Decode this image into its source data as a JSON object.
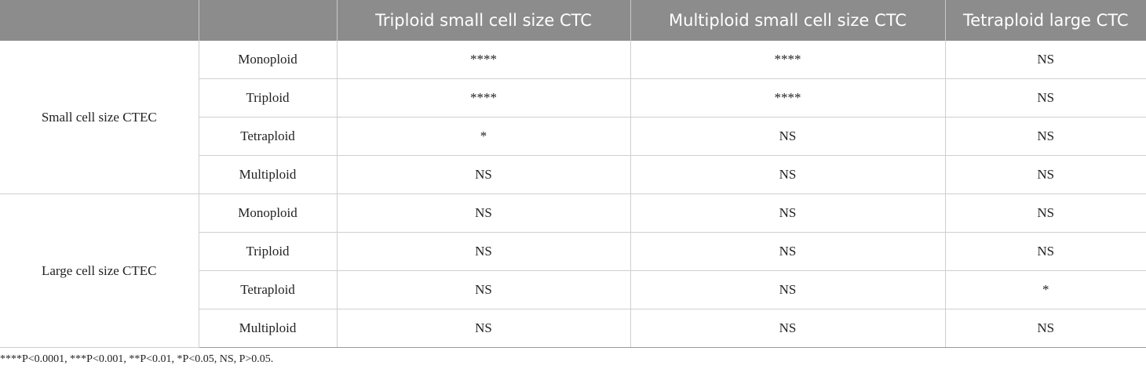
{
  "header": {
    "col_triploid": "Triploid small cell size CTC",
    "col_multiploid": "Multiploid small cell size CTC",
    "col_tetraploid": "Tetraploid large CTC"
  },
  "groups": [
    {
      "label": "Small cell size CTEC",
      "rows": [
        {
          "ploidy": "Monoploid",
          "triploid": "****",
          "multiploid": "****",
          "tetraploid": "NS"
        },
        {
          "ploidy": "Triploid",
          "triploid": "****",
          "multiploid": "****",
          "tetraploid": "NS"
        },
        {
          "ploidy": "Tetraploid",
          "triploid": "*",
          "multiploid": "NS",
          "tetraploid": "NS"
        },
        {
          "ploidy": "Multiploid",
          "triploid": "NS",
          "multiploid": "NS",
          "tetraploid": "NS"
        }
      ]
    },
    {
      "label": "Large cell size CTEC",
      "rows": [
        {
          "ploidy": "Monoploid",
          "triploid": "NS",
          "multiploid": "NS",
          "tetraploid": "NS"
        },
        {
          "ploidy": "Triploid",
          "triploid": "NS",
          "multiploid": "NS",
          "tetraploid": "NS"
        },
        {
          "ploidy": "Tetraploid",
          "triploid": "NS",
          "multiploid": "NS",
          "tetraploid": "*"
        },
        {
          "ploidy": "Multiploid",
          "triploid": "NS",
          "multiploid": "NS",
          "tetraploid": "NS"
        }
      ]
    }
  ],
  "footnote": "****P<0.0001, ***P<0.001, **P<0.01, *P<0.05, NS, P>0.05."
}
